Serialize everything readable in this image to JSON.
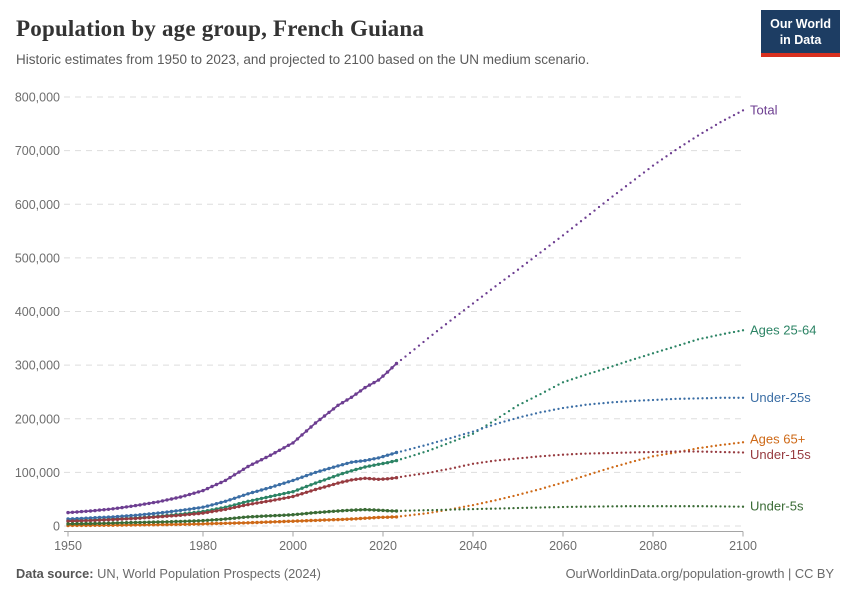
{
  "header": {
    "title": "Population by age group, French Guiana",
    "subtitle": "Historic estimates from 1950 to 2023, and projected to 2100 based on the UN medium scenario.",
    "logo_line1": "Our World",
    "logo_line2": "in Data",
    "logo_bg": "#1d3d63",
    "logo_accent": "#d8301f"
  },
  "footer": {
    "source_label": "Data source:",
    "source_text": " UN, World Population Prospects (2024)",
    "right_text": "OurWorldinData.org/population-growth | CC BY"
  },
  "chart_data": {
    "type": "line",
    "title": "Population by age group, French Guiana",
    "xlabel": "",
    "ylabel": "",
    "xlim": [
      1950,
      2100
    ],
    "ylim": [
      0,
      800000
    ],
    "x_ticks": [
      1950,
      1980,
      2000,
      2020,
      2040,
      2060,
      2080,
      2100
    ],
    "y_ticks": [
      0,
      100000,
      200000,
      300000,
      400000,
      500000,
      600000,
      700000,
      800000
    ],
    "grid": "dashed-horizontal",
    "legend_position": "right-of-line-ends",
    "history_style": "solid line with year dots (1950-2023)",
    "projection_style": "dotted (2023-2100)",
    "history_end_year": 2023,
    "series": [
      {
        "name": "Total",
        "color": "#6d3e91",
        "history": {
          "years": [
            1950,
            1955,
            1960,
            1965,
            1970,
            1975,
            1980,
            1985,
            1990,
            1995,
            2000,
            2005,
            2010,
            2013,
            2016,
            2019,
            2021,
            2023
          ],
          "values": [
            25000,
            28000,
            32000,
            38000,
            45000,
            54000,
            66000,
            85000,
            111000,
            132000,
            155000,
            192000,
            225000,
            240000,
            258000,
            272000,
            287000,
            303000
          ]
        },
        "projection": {
          "years": [
            2023,
            2025,
            2030,
            2035,
            2040,
            2045,
            2050,
            2055,
            2060,
            2065,
            2070,
            2075,
            2080,
            2085,
            2090,
            2095,
            2100
          ],
          "values": [
            303000,
            316000,
            350000,
            383000,
            415000,
            447000,
            478000,
            510000,
            542000,
            575000,
            608000,
            640000,
            672000,
            701000,
            728000,
            753000,
            775000
          ]
        }
      },
      {
        "name": "Ages 25-64",
        "color": "#2c8465",
        "history": {
          "years": [
            1950,
            1955,
            1960,
            1965,
            1970,
            1975,
            1980,
            1985,
            1990,
            1995,
            2000,
            2005,
            2010,
            2013,
            2016,
            2019,
            2021,
            2023
          ],
          "values": [
            10000,
            11000,
            13000,
            15000,
            18000,
            22000,
            27000,
            35000,
            46000,
            55000,
            64000,
            80000,
            95000,
            103000,
            110000,
            115000,
            118000,
            122000
          ]
        },
        "projection": {
          "years": [
            2023,
            2025,
            2030,
            2035,
            2040,
            2045,
            2050,
            2055,
            2060,
            2065,
            2070,
            2075,
            2080,
            2085,
            2090,
            2095,
            2100
          ],
          "values": [
            122000,
            127000,
            140000,
            156000,
            172000,
            198000,
            225000,
            246000,
            268000,
            282000,
            295000,
            309000,
            322000,
            335000,
            348000,
            357000,
            365000
          ]
        }
      },
      {
        "name": "Under-25s",
        "color": "#3b6ea5",
        "history": {
          "years": [
            1950,
            1955,
            1960,
            1965,
            1970,
            1975,
            1980,
            1985,
            1990,
            1995,
            2000,
            2005,
            2010,
            2013,
            2016,
            2019,
            2021,
            2023
          ],
          "values": [
            13000,
            15000,
            17000,
            20000,
            24000,
            29000,
            35000,
            46000,
            60000,
            72000,
            85000,
            100000,
            112000,
            119000,
            122000,
            127000,
            132000,
            137000
          ]
        },
        "projection": {
          "years": [
            2023,
            2025,
            2030,
            2035,
            2040,
            2045,
            2050,
            2055,
            2060,
            2065,
            2070,
            2075,
            2080,
            2085,
            2090,
            2095,
            2100
          ],
          "values": [
            137000,
            141000,
            152000,
            164000,
            176000,
            190000,
            202000,
            212000,
            220000,
            226000,
            230000,
            233000,
            235000,
            237000,
            238000,
            239000,
            239000
          ]
        }
      },
      {
        "name": "Ages 65+",
        "color": "#ce6917",
        "history": {
          "years": [
            1950,
            1955,
            1960,
            1965,
            1970,
            1975,
            1980,
            1985,
            1990,
            1995,
            2000,
            2005,
            2010,
            2013,
            2016,
            2019,
            2021,
            2023
          ],
          "values": [
            1000,
            1200,
            1500,
            2000,
            2500,
            3000,
            4000,
            5000,
            6000,
            7500,
            9000,
            10500,
            12000,
            13000,
            14500,
            16000,
            16500,
            17000
          ]
        },
        "projection": {
          "years": [
            2023,
            2025,
            2030,
            2035,
            2040,
            2045,
            2050,
            2055,
            2060,
            2065,
            2070,
            2075,
            2080,
            2085,
            2090,
            2095,
            2100
          ],
          "values": [
            17000,
            19000,
            24000,
            31000,
            39000,
            48000,
            58000,
            69000,
            81000,
            94000,
            107000,
            119000,
            130000,
            137000,
            145000,
            151000,
            156000
          ]
        }
      },
      {
        "name": "Under-15s",
        "color": "#973b40",
        "history": {
          "years": [
            1950,
            1955,
            1960,
            1965,
            1970,
            1975,
            1980,
            1985,
            1990,
            1995,
            2000,
            2005,
            2010,
            2013,
            2016,
            2019,
            2021,
            2023
          ],
          "values": [
            9000,
            10000,
            12000,
            14000,
            17000,
            20000,
            24000,
            31000,
            40000,
            47000,
            55000,
            68000,
            80000,
            86000,
            89000,
            87000,
            88000,
            90000
          ]
        },
        "projection": {
          "years": [
            2023,
            2025,
            2030,
            2035,
            2040,
            2045,
            2050,
            2055,
            2060,
            2065,
            2070,
            2075,
            2080,
            2085,
            2090,
            2095,
            2100
          ],
          "values": [
            90000,
            93000,
            99000,
            107000,
            116000,
            122000,
            126000,
            130000,
            133000,
            135000,
            136000,
            137000,
            138000,
            139000,
            139000,
            138000,
            137000
          ]
        }
      },
      {
        "name": "Under-5s",
        "color": "#3a6b35",
        "history": {
          "years": [
            1950,
            1955,
            1960,
            1965,
            1970,
            1975,
            1980,
            1985,
            1990,
            1995,
            2000,
            2005,
            2010,
            2013,
            2016,
            2019,
            2021,
            2023
          ],
          "values": [
            4000,
            4500,
            5500,
            6500,
            7500,
            8500,
            10000,
            13000,
            17000,
            19000,
            21000,
            25000,
            28000,
            29500,
            30500,
            29500,
            28500,
            28000
          ]
        },
        "projection": {
          "years": [
            2023,
            2025,
            2030,
            2035,
            2040,
            2045,
            2050,
            2055,
            2060,
            2065,
            2070,
            2075,
            2080,
            2085,
            2090,
            2095,
            2100
          ],
          "values": [
            28000,
            28500,
            29500,
            30500,
            31500,
            32500,
            33500,
            34500,
            35500,
            36000,
            36500,
            37000,
            37000,
            37000,
            37000,
            36500,
            36000
          ]
        }
      }
    ],
    "axis_color": "#a5a5a5",
    "grid_color": "#dddddd",
    "tick_label_color": "#6e6e6e"
  }
}
